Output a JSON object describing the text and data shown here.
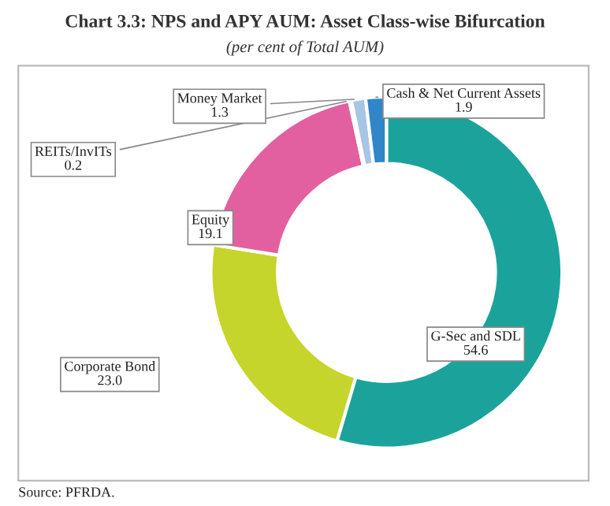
{
  "chart_data": {
    "type": "donut",
    "title": "Chart 3.3: NPS and APY AUM: Asset Class-wise Bifurcation",
    "subtitle": "(per cent of Total AUM)",
    "categories": [
      "G-Sec and SDL",
      "Corporate Bond",
      "Equity",
      "REITs/InvITs",
      "Money Market",
      "Cash & Net Current Assets"
    ],
    "values": [
      54.6,
      23.0,
      19.1,
      0.2,
      1.3,
      1.9
    ],
    "colors": [
      "#1ba39b",
      "#c5d52b",
      "#e2609f",
      "#f5b07c",
      "#a7c6e6",
      "#2f86c8"
    ],
    "value_labels": [
      "54.6",
      "23.0",
      "19.1",
      "0.2",
      "1.3",
      "1.9"
    ],
    "legend": false,
    "annotations": [
      "Source: PFRDA."
    ]
  }
}
